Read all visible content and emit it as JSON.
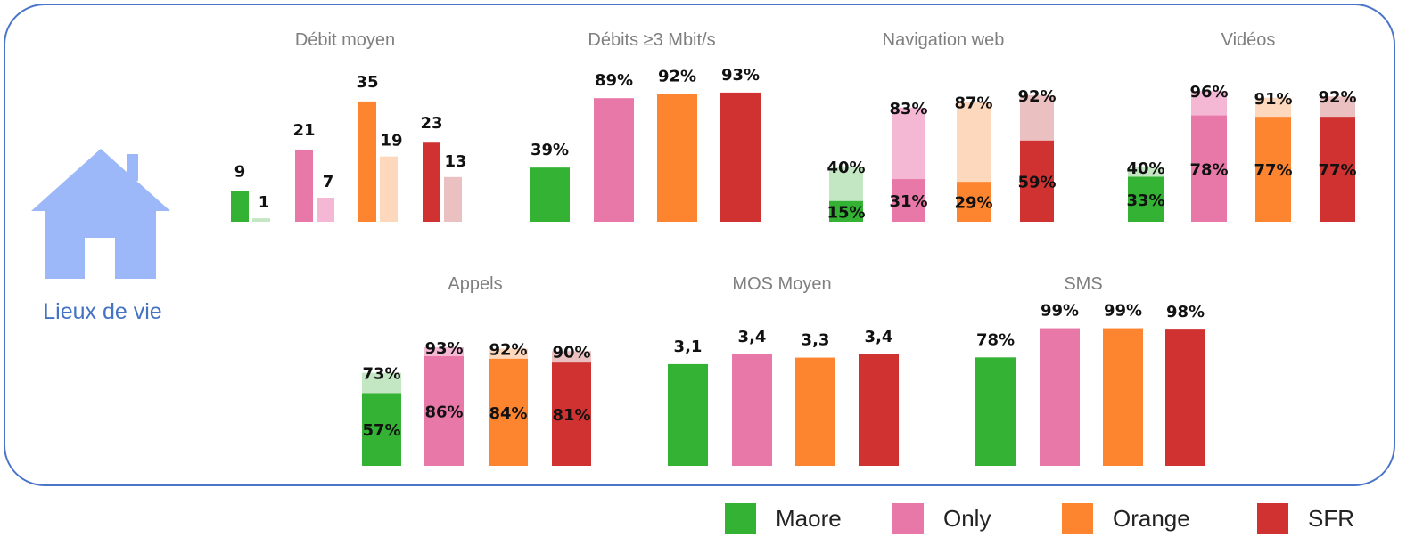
{
  "place_label": "Lieux de vie",
  "legend": [
    {
      "name": "Maore",
      "color": "#33b233"
    },
    {
      "name": "Only",
      "color": "#e878a8"
    },
    {
      "name": "Orange",
      "color": "#fe8530"
    },
    {
      "name": "SFR",
      "color": "#d03232"
    }
  ],
  "light_colors": [
    "#c3e6c3",
    "#f4b8d4",
    "#fed8bc",
    "#ebc0c0"
  ],
  "chart_data": [
    {
      "type": "bar",
      "title": "Débit moyen",
      "categories": [
        "Maore",
        "Only",
        "Orange",
        "SFR"
      ],
      "series": [
        {
          "name": "primary",
          "values": [
            9,
            21,
            35,
            23
          ],
          "labels": [
            "9",
            "21",
            "35",
            "23"
          ]
        },
        {
          "name": "secondary",
          "values": [
            1,
            7,
            19,
            13
          ],
          "labels": [
            "1",
            "7",
            "19",
            "13"
          ]
        }
      ],
      "mode": "grouped"
    },
    {
      "type": "bar",
      "title": "Débits  ≥3 Mbit/s",
      "categories": [
        "Maore",
        "Only",
        "Orange",
        "SFR"
      ],
      "series": [
        {
          "name": "primary",
          "values": [
            39,
            89,
            92,
            93
          ],
          "labels": [
            "39%",
            "89%",
            "92%",
            "93%"
          ]
        }
      ],
      "mode": "single"
    },
    {
      "type": "bar",
      "title": "Navigation web",
      "categories": [
        "Maore",
        "Only",
        "Orange",
        "SFR"
      ],
      "series": [
        {
          "name": "inner",
          "values": [
            15,
            31,
            29,
            59
          ],
          "labels": [
            "15%",
            "31%",
            "29%",
            "59%"
          ]
        },
        {
          "name": "outer",
          "values": [
            40,
            83,
            87,
            92
          ],
          "labels": [
            "40%",
            "83%",
            "87%",
            "92%"
          ]
        }
      ],
      "mode": "overlay"
    },
    {
      "type": "bar",
      "title": "Vidéos",
      "categories": [
        "Maore",
        "Only",
        "Orange",
        "SFR"
      ],
      "series": [
        {
          "name": "inner",
          "values": [
            33,
            78,
            77,
            77
          ],
          "labels": [
            "33%",
            "78%",
            "77%",
            "77%"
          ]
        },
        {
          "name": "outer",
          "values": [
            40,
            96,
            91,
            92
          ],
          "labels": [
            "40%",
            "96%",
            "91%",
            "92%"
          ]
        }
      ],
      "mode": "overlay"
    },
    {
      "type": "bar",
      "title": "Appels",
      "categories": [
        "Maore",
        "Only",
        "Orange",
        "SFR"
      ],
      "series": [
        {
          "name": "inner",
          "values": [
            57,
            86,
            84,
            81
          ],
          "labels": [
            "57%",
            "86%",
            "84%",
            "81%"
          ]
        },
        {
          "name": "outer",
          "values": [
            73,
            93,
            92,
            90
          ],
          "labels": [
            "73%",
            "93%",
            "92%",
            "90%"
          ]
        }
      ],
      "mode": "overlay"
    },
    {
      "type": "bar",
      "title": "MOS Moyen",
      "categories": [
        "Maore",
        "Only",
        "Orange",
        "SFR"
      ],
      "series": [
        {
          "name": "primary",
          "values": [
            3.1,
            3.4,
            3.3,
            3.4
          ],
          "labels": [
            "3,1",
            "3,4",
            "3,3",
            "3,4"
          ]
        }
      ],
      "mode": "single"
    },
    {
      "type": "bar",
      "title": "SMS",
      "categories": [
        "Maore",
        "Only",
        "Orange",
        "SFR"
      ],
      "series": [
        {
          "name": "primary",
          "values": [
            78,
            99,
            99,
            98
          ],
          "labels": [
            "78%",
            "99%",
            "99%",
            "98%"
          ]
        }
      ],
      "mode": "single"
    }
  ]
}
